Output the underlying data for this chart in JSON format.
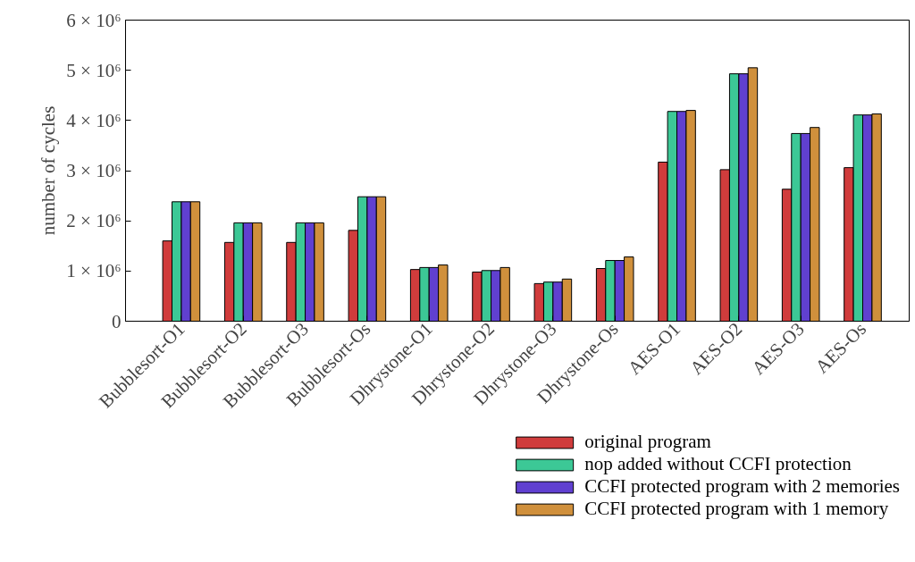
{
  "chart_data": {
    "type": "bar",
    "ylabel": "number of cycles",
    "categories": [
      "Bubblesort-O1",
      "Bubblesort-O2",
      "Bubblesort-O3",
      "Bubblesort-Os",
      "Dhrystone-O1",
      "Dhrystone-O2",
      "Dhrystone-O3",
      "Dhrystone-Os",
      "AES-O1",
      "AES-O2",
      "AES-O3",
      "AES-Os"
    ],
    "series": [
      {
        "name": "original program",
        "color": "#d03c3c",
        "values": [
          1600000,
          1570000,
          1570000,
          1810000,
          1030000,
          980000,
          750000,
          1050000,
          3170000,
          3020000,
          2630000,
          3060000
        ]
      },
      {
        "name": "nop added without CCFI protection",
        "color": "#3cc896",
        "values": [
          2380000,
          1960000,
          1960000,
          2480000,
          1070000,
          1010000,
          780000,
          1210000,
          4180000,
          4930000,
          3740000,
          4110000
        ]
      },
      {
        "name": "CCFI protected program with 2 memories",
        "color": "#6040d0",
        "values": [
          2380000,
          1960000,
          1960000,
          2480000,
          1070000,
          1010000,
          780000,
          1210000,
          4180000,
          4930000,
          3740000,
          4110000
        ]
      },
      {
        "name": "CCFI protected program with 1 memory",
        "color": "#d0903c",
        "values": [
          2380000,
          1960000,
          1960000,
          2480000,
          1120000,
          1070000,
          840000,
          1280000,
          4200000,
          5050000,
          3860000,
          4130000
        ]
      }
    ],
    "ylim": [
      0,
      6000000
    ],
    "yticks": [
      0,
      {
        "value": 1000000,
        "label": "1 × 10⁶"
      },
      {
        "value": 2000000,
        "label": "2 × 10⁶"
      },
      {
        "value": 3000000,
        "label": "3 × 10⁶"
      },
      {
        "value": 4000000,
        "label": "4 × 10⁶"
      },
      {
        "value": 5000000,
        "label": "5 × 10⁶"
      },
      {
        "value": 6000000,
        "label": "6 × 10⁶"
      }
    ],
    "grid": false,
    "legend": "bottom right"
  }
}
